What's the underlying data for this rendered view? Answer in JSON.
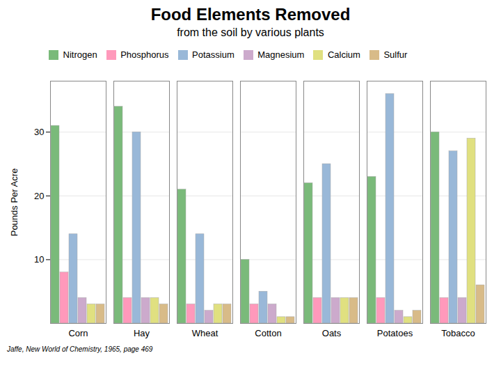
{
  "chart_data": {
    "type": "bar",
    "title": "Food Elements Removed",
    "subtitle": "from the soil by various plants",
    "ylabel": "Pounds Per Acre",
    "caption": "Jaffe, New World of Chemistry, 1965, page 469",
    "categories": [
      "Corn",
      "Hay",
      "Wheat",
      "Cotton",
      "Oats",
      "Potatoes",
      "Tobacco"
    ],
    "series": [
      {
        "name": "Nitrogen",
        "color": "#7aba7a",
        "values": [
          31,
          34,
          21,
          10,
          22,
          23,
          30
        ]
      },
      {
        "name": "Phosphorus",
        "color": "#ff99bb",
        "values": [
          8,
          4,
          3,
          3,
          4,
          4,
          4
        ]
      },
      {
        "name": "Potassium",
        "color": "#99b8d8",
        "values": [
          14,
          30,
          14,
          5,
          25,
          36,
          27
        ]
      },
      {
        "name": "Magnesium",
        "color": "#ccaacc",
        "values": [
          4,
          4,
          2,
          3,
          4,
          2,
          4
        ]
      },
      {
        "name": "Calcium",
        "color": "#e0e080",
        "values": [
          3,
          4,
          3,
          1,
          4,
          1,
          29
        ]
      },
      {
        "name": "Sulfur",
        "color": "#d8bb88",
        "values": [
          3,
          3,
          3,
          1,
          4,
          2,
          6
        ]
      }
    ],
    "ylim": [
      0,
      38
    ],
    "yticks": [
      10,
      20,
      30
    ],
    "grid": true,
    "legend": "upper left"
  }
}
